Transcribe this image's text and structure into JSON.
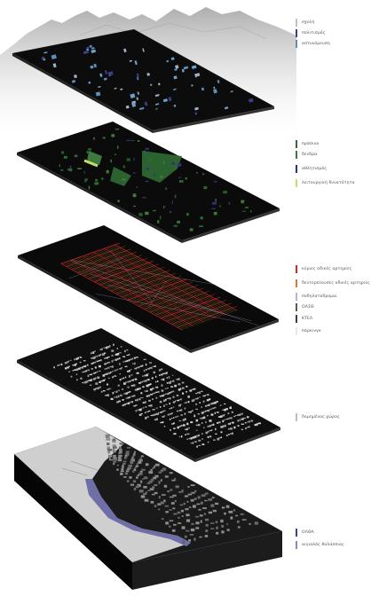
{
  "layers": [
    {
      "name": "facilities",
      "legend": [
        {
          "label": "σχολή",
          "color": "#b9c0cc"
        },
        {
          "label": "πολιτισμός",
          "color": "#3a3f8c"
        },
        {
          "label": "αστυνόμευση",
          "color": "#5d8fb8"
        }
      ]
    },
    {
      "name": "green",
      "legend": [
        {
          "label": "πράσινο",
          "color": "#2f6b33"
        },
        {
          "label": "δενδρα",
          "color": "#3d7a3d"
        },
        {
          "label": "αθλητισμός",
          "color": "#30307a"
        },
        {
          "label": "λειτουργική δυνατότητα",
          "color": "#c9dc6a"
        }
      ]
    },
    {
      "name": "streets",
      "legend": [
        {
          "label": "κύριες οδικές αρτηρίες",
          "color": "#d9262e"
        },
        {
          "label": "δευτερεύουσες οδικές αρτηρίες",
          "color": "#e07a2b"
        },
        {
          "label": "ποδηλατοδρομοι",
          "color": "#b8b2d8"
        },
        {
          "label": "ΟΑΣΘ",
          "color": "#5a5a5a"
        },
        {
          "label": "ΚΤΕΛ",
          "color": "#3c3c3c"
        },
        {
          "label": "πάρκινγκ",
          "color": "#e8e8e8"
        }
      ]
    },
    {
      "name": "built",
      "legend": [
        {
          "label": "δομημένος χώρος",
          "color": "#bdbdbd"
        }
      ]
    },
    {
      "name": "base",
      "legend": [
        {
          "label": "ΟΛΘΑ",
          "color": "#3b3f8a"
        },
        {
          "label": "αιγιαλός θαλάσσιος",
          "color": "#8a8ab8"
        }
      ]
    }
  ]
}
